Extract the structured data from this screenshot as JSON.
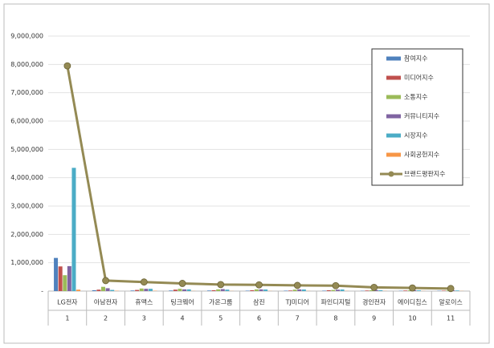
{
  "chart_data": {
    "type": "bar",
    "categories": [
      "LG전자",
      "아남전자",
      "휴맥스",
      "팅크웨어",
      "가온그룹",
      "삼진",
      "TJ미디어",
      "파인디지털",
      "경인전자",
      "에이디칩스",
      "알로이스"
    ],
    "category_numbers": [
      "1",
      "2",
      "3",
      "4",
      "5",
      "6",
      "7",
      "8",
      "9",
      "10",
      "11"
    ],
    "ylim": [
      0,
      9000000
    ],
    "yticks": [
      {
        "value": 0,
        "label": "-"
      },
      {
        "value": 1000000,
        "label": "1,000,000"
      },
      {
        "value": 2000000,
        "label": "2,000,000"
      },
      {
        "value": 3000000,
        "label": "3,000,000"
      },
      {
        "value": 4000000,
        "label": "4,000,000"
      },
      {
        "value": 5000000,
        "label": "5,000,000"
      },
      {
        "value": 6000000,
        "label": "6,000,000"
      },
      {
        "value": 7000000,
        "label": "7,000,000"
      },
      {
        "value": 8000000,
        "label": "8,000,000"
      },
      {
        "value": 9000000,
        "label": "9,000,000"
      }
    ],
    "grid": true,
    "legend": "upper right",
    "series": [
      {
        "name": "참여지수",
        "type": "bar",
        "color": "#4f81bd",
        "values": [
          1170000,
          30000,
          20000,
          20000,
          20000,
          15000,
          15000,
          15000,
          10000,
          10000,
          10000
        ]
      },
      {
        "name": "미디어지수",
        "type": "bar",
        "color": "#c0504d",
        "values": [
          870000,
          50000,
          40000,
          50000,
          30000,
          30000,
          20000,
          30000,
          20000,
          20000,
          15000
        ]
      },
      {
        "name": "소통지수",
        "type": "bar",
        "color": "#9bbb59",
        "values": [
          560000,
          150000,
          90000,
          80000,
          60000,
          60000,
          50000,
          40000,
          30000,
          25000,
          20000
        ]
      },
      {
        "name": "커뮤니티지수",
        "type": "bar",
        "color": "#8064a2",
        "values": [
          880000,
          100000,
          80000,
          60000,
          70000,
          60000,
          60000,
          50000,
          40000,
          30000,
          25000
        ]
      },
      {
        "name": "시장지수",
        "type": "bar",
        "color": "#4bacc6",
        "values": [
          4350000,
          40000,
          80000,
          60000,
          50000,
          55000,
          55000,
          55000,
          30000,
          25000,
          20000
        ]
      },
      {
        "name": "사회공헌지수",
        "type": "bar",
        "color": "#f79646",
        "values": [
          50000,
          10000,
          10000,
          5000,
          5000,
          5000,
          5000,
          5000,
          5000,
          5000,
          5000
        ]
      },
      {
        "name": "브랜드평판지수",
        "type": "line",
        "color": "#948a54",
        "values": [
          7950000,
          370000,
          320000,
          270000,
          230000,
          220000,
          200000,
          190000,
          130000,
          110000,
          90000
        ]
      }
    ]
  }
}
